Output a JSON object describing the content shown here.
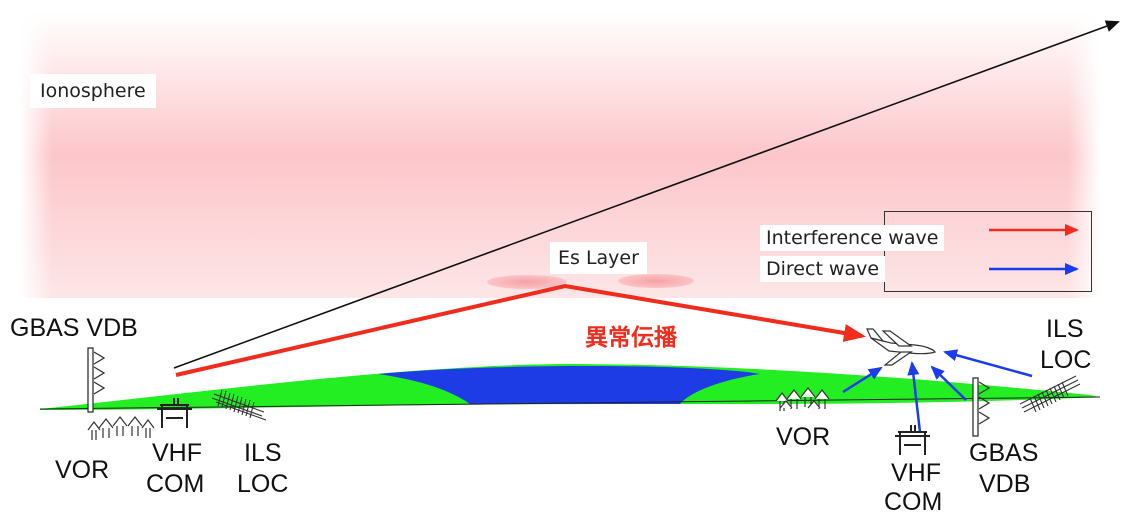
{
  "diagram": {
    "region_label": "Ionosphere",
    "layer_label": "Es Layer",
    "propagation_label": "異常伝播",
    "legend": {
      "items": [
        {
          "label": "Interference wave",
          "color": "#f02c1c"
        },
        {
          "label": "Direct wave",
          "color": "#1a3cf0"
        }
      ]
    },
    "left_site": {
      "gbas": "GBAS VDB",
      "vor": "VOR",
      "vhf_line1": "VHF",
      "vhf_line2": "COM",
      "ils_line1": "ILS",
      "ils_line2": "LOC"
    },
    "right_site": {
      "vor": "VOR",
      "vhf_line1": "VHF",
      "vhf_line2": "COM",
      "gbas_line1": "GBAS",
      "gbas_line2": "VDB",
      "ils_line1": "ILS",
      "ils_line2": "LOC"
    },
    "colors": {
      "ionosphere": "#fbd0d3",
      "ground_green": "#22ee22",
      "sea_blue": "#1e3ce6",
      "interference": "#f02c1c",
      "direct": "#1a3cf0"
    }
  }
}
